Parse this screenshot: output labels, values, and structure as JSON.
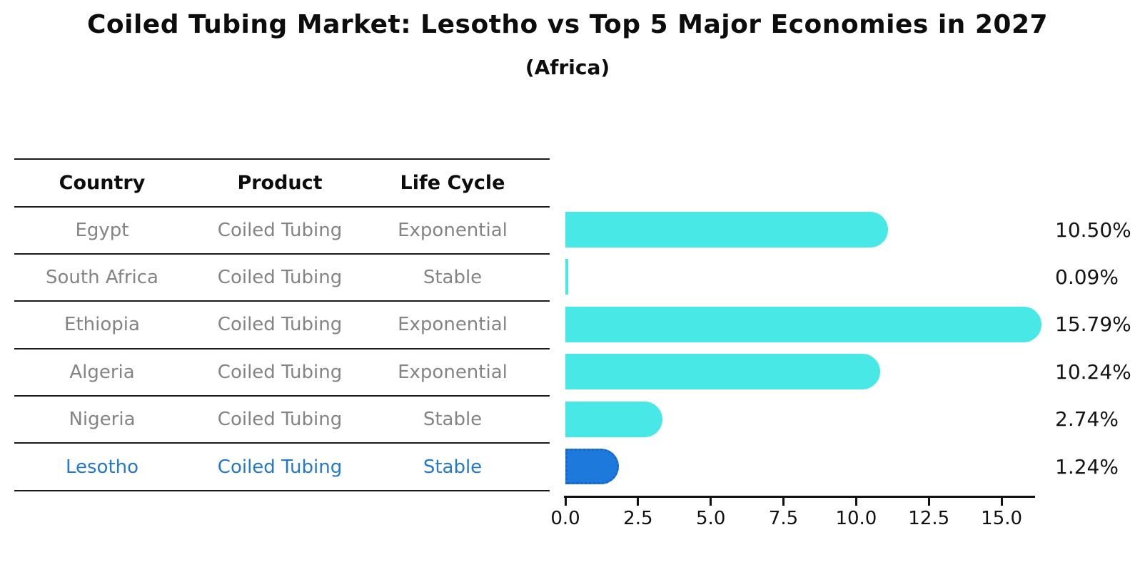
{
  "title": "Coiled Tubing Market: Lesotho vs Top 5 Major Economies in 2027",
  "subtitle": "(Africa)",
  "table": {
    "headers": [
      "Country",
      "Product",
      "Life Cycle"
    ],
    "rows": [
      {
        "country": "Egypt",
        "product": "Coiled Tubing",
        "life_cycle": "Exponential",
        "highlight": false
      },
      {
        "country": "South Africa",
        "product": "Coiled Tubing",
        "life_cycle": "Stable",
        "highlight": false
      },
      {
        "country": "Ethiopia",
        "product": "Coiled Tubing",
        "life_cycle": "Exponential",
        "highlight": false
      },
      {
        "country": "Algeria",
        "product": "Coiled Tubing",
        "life_cycle": "Exponential",
        "highlight": false
      },
      {
        "country": "Nigeria",
        "product": "Coiled Tubing",
        "life_cycle": "Stable",
        "highlight": false
      },
      {
        "country": "Lesotho",
        "product": "Coiled Tubing",
        "life_cycle": "Stable",
        "highlight": true
      }
    ]
  },
  "chart_data": {
    "type": "bar",
    "orientation": "horizontal",
    "title": "Coiled Tubing Market: Lesotho vs Top 5 Major Economies in 2027",
    "subtitle": "(Africa)",
    "categories": [
      "Egypt",
      "South Africa",
      "Ethiopia",
      "Algeria",
      "Nigeria",
      "Lesotho"
    ],
    "values": [
      10.5,
      0.09,
      15.79,
      10.24,
      2.74,
      1.24
    ],
    "value_labels": [
      "10.50%",
      "0.09%",
      "15.79%",
      "10.24%",
      "2.74%",
      "1.24%"
    ],
    "highlight_index": 5,
    "xlabel": "",
    "ylabel": "",
    "xlim": [
      0,
      16.2
    ],
    "x_ticks": [
      0.0,
      2.5,
      5.0,
      7.5,
      10.0,
      12.5,
      15.0
    ],
    "x_tick_labels": [
      "0.0",
      "2.5",
      "5.0",
      "7.5",
      "10.0",
      "12.5",
      "15.0"
    ],
    "grid": false,
    "legend": false
  },
  "colors": {
    "background": "#ffffff",
    "title_text": "#0d0d0d",
    "table_line": "#1a1a1a",
    "row_text": "#848484",
    "highlight_text": "#2579cb",
    "bar": "#47e8e6",
    "highlight_bar": "#1e79dc",
    "highlight_bar_border": "#1b66c9",
    "value_label": "#141414",
    "axis": "#111111"
  }
}
